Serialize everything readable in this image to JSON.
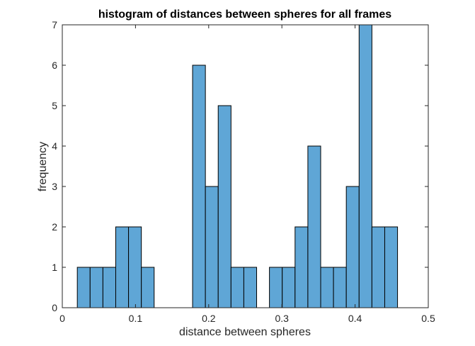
{
  "chart_data": {
    "type": "bar",
    "subtype": "histogram",
    "title": "histogram of distances between spheres for all frames",
    "xlabel": "distance between spheres",
    "ylabel": "frequency",
    "xlim": [
      0,
      0.5
    ],
    "ylim": [
      0,
      7
    ],
    "xticks": [
      "0",
      "0.1",
      "0.2",
      "0.3",
      "0.4",
      "0.5"
    ],
    "yticks": [
      "0",
      "1",
      "2",
      "3",
      "4",
      "5",
      "6",
      "7"
    ],
    "bin_start": 0.0205,
    "bin_width": 0.0175,
    "values": [
      1,
      1,
      1,
      2,
      2,
      1,
      0,
      0,
      0,
      6,
      3,
      5,
      1,
      1,
      0,
      1,
      1,
      2,
      4,
      1,
      1,
      3,
      7,
      2,
      2
    ],
    "bar_color": "#5fa6d6",
    "edge_color": "#000000",
    "grid": false,
    "box": true
  }
}
